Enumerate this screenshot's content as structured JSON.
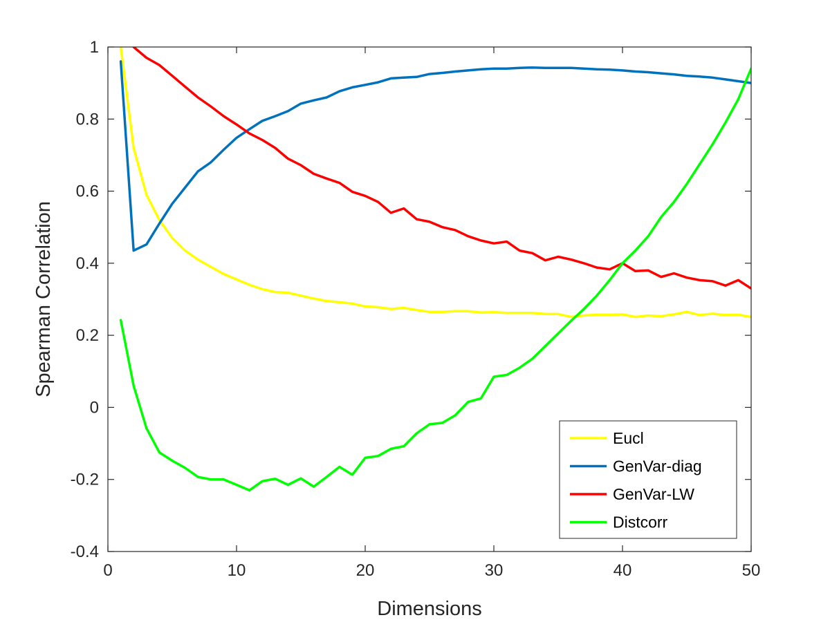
{
  "chart_data": {
    "type": "line",
    "title": "",
    "xlabel": "Dimensions",
    "ylabel": "Spearman Correlation",
    "xlim": [
      0,
      50
    ],
    "ylim": [
      -0.4,
      1
    ],
    "xticks": [
      0,
      10,
      20,
      30,
      40,
      50
    ],
    "xtick_labels": [
      "0",
      "10",
      "20",
      "30",
      "40",
      "50"
    ],
    "yticks": [
      -0.4,
      -0.2,
      0,
      0.2,
      0.4,
      0.6,
      0.8,
      1
    ],
    "ytick_labels": [
      "-0.4",
      "-0.2",
      "0",
      "0.2",
      "0.4",
      "0.6",
      "0.8",
      "1"
    ],
    "grid": false,
    "legend_position": "bottom-right",
    "x": [
      1,
      2,
      3,
      4,
      5,
      6,
      7,
      8,
      9,
      10,
      11,
      12,
      13,
      14,
      15,
      16,
      17,
      18,
      19,
      20,
      21,
      22,
      23,
      24,
      25,
      26,
      27,
      28,
      29,
      30,
      31,
      32,
      33,
      34,
      35,
      36,
      37,
      38,
      39,
      40,
      41,
      42,
      43,
      44,
      45,
      46,
      47,
      48,
      49,
      50
    ],
    "series": [
      {
        "name": "Eucl",
        "color": "#FFFF00",
        "values": [
          1.0,
          0.72,
          0.59,
          0.52,
          0.47,
          0.435,
          0.41,
          0.39,
          0.37,
          0.355,
          0.34,
          0.328,
          0.32,
          0.318,
          0.31,
          0.302,
          0.295,
          0.292,
          0.288,
          0.28,
          0.278,
          0.273,
          0.276,
          0.27,
          0.265,
          0.265,
          0.267,
          0.267,
          0.263,
          0.264,
          0.262,
          0.262,
          0.262,
          0.259,
          0.259,
          0.251,
          0.255,
          0.257,
          0.257,
          0.258,
          0.251,
          0.255,
          0.253,
          0.258,
          0.265,
          0.256,
          0.26,
          0.256,
          0.257,
          0.251
        ]
      },
      {
        "name": "GenVar-diag",
        "color": "#0072BD",
        "values": [
          0.96,
          0.435,
          0.452,
          0.51,
          0.565,
          0.61,
          0.655,
          0.68,
          0.715,
          0.748,
          0.772,
          0.795,
          0.808,
          0.822,
          0.843,
          0.852,
          0.86,
          0.877,
          0.888,
          0.895,
          0.902,
          0.913,
          0.915,
          0.917,
          0.925,
          0.928,
          0.932,
          0.935,
          0.938,
          0.94,
          0.94,
          0.942,
          0.943,
          0.942,
          0.942,
          0.942,
          0.94,
          0.938,
          0.937,
          0.935,
          0.932,
          0.93,
          0.927,
          0.924,
          0.92,
          0.918,
          0.915,
          0.91,
          0.905,
          0.9
        ]
      },
      {
        "name": "GenVar-LW",
        "color": "#FF0000",
        "values": [
          null,
          1.0,
          0.97,
          0.95,
          0.92,
          0.89,
          0.86,
          0.835,
          0.808,
          0.785,
          0.76,
          0.742,
          0.72,
          0.69,
          0.672,
          0.648,
          0.635,
          0.623,
          0.598,
          0.587,
          0.57,
          0.54,
          0.552,
          0.522,
          0.515,
          0.5,
          0.492,
          0.475,
          0.463,
          0.455,
          0.46,
          0.435,
          0.428,
          0.408,
          0.418,
          0.41,
          0.4,
          0.388,
          0.383,
          0.4,
          0.378,
          0.38,
          0.362,
          0.372,
          0.36,
          0.353,
          0.35,
          0.338,
          0.353,
          0.33
        ]
      },
      {
        "name": "Distcorr",
        "color": "#00FF00",
        "values": [
          0.242,
          0.06,
          -0.058,
          -0.125,
          -0.148,
          -0.168,
          -0.193,
          -0.2,
          -0.2,
          -0.215,
          -0.23,
          -0.205,
          -0.198,
          -0.215,
          -0.197,
          -0.22,
          -0.193,
          -0.165,
          -0.187,
          -0.14,
          -0.135,
          -0.115,
          -0.108,
          -0.072,
          -0.047,
          -0.043,
          -0.022,
          0.015,
          0.025,
          0.085,
          0.09,
          0.11,
          0.135,
          0.17,
          0.205,
          0.24,
          0.273,
          0.31,
          0.353,
          0.4,
          0.435,
          0.475,
          0.528,
          0.57,
          0.62,
          0.675,
          0.73,
          0.79,
          0.855,
          0.94
        ]
      }
    ]
  }
}
